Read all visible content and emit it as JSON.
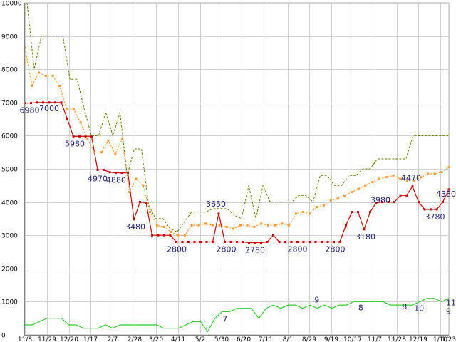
{
  "chart_data": {
    "type": "line",
    "grid": true,
    "ylim": [
      0,
      10000
    ],
    "y_ticks": [
      0,
      1000,
      2000,
      3000,
      4000,
      5000,
      6000,
      7000,
      8000,
      9000,
      10000
    ],
    "y_tick_labels": [
      "0",
      "1000",
      "2000",
      "3000",
      "4000",
      "5000",
      "6000",
      "7000",
      "8000",
      "9000",
      "10000"
    ],
    "x_tick_labels": [
      "11/8",
      "11/29",
      "12/20",
      "1/17",
      "2/7",
      "2/28",
      "3/20",
      "4/11",
      "5/2",
      "5/30",
      "6/20",
      "7/11",
      "8/1",
      "8/29",
      "9/19",
      "10/17",
      "11/7",
      "11/28",
      "12/19",
      "1/10",
      "1/23"
    ],
    "series_colors": {
      "price": "#cc0000",
      "average": "#ff9933",
      "high": "#667700",
      "count": "#33cc33"
    },
    "series": [
      {
        "id": "price",
        "values": [
          6980,
          6980,
          7000,
          7000,
          7000,
          7000,
          7000,
          6500,
          5980,
          5980,
          5980,
          5980,
          4970,
          4970,
          4900,
          4880,
          4880,
          4880,
          3480,
          4000,
          3980,
          3000,
          3000,
          3000,
          3000,
          2800,
          2800,
          2800,
          2800,
          2800,
          2800,
          2800,
          3650,
          2800,
          2800,
          2800,
          2800,
          2780,
          2780,
          2780,
          2800,
          3000,
          2800,
          2800,
          2800,
          2800,
          2800,
          2800,
          2800,
          2800,
          2800,
          2800,
          2800,
          3300,
          3700,
          3700,
          3180,
          3700,
          3980,
          4000,
          4000,
          4000,
          4200,
          4200,
          4470,
          4000,
          3780,
          3780,
          3780,
          4000,
          4380
        ]
      },
      {
        "id": "average",
        "values": [
          8650,
          7500,
          7900,
          7800,
          7800,
          7500,
          6800,
          6800,
          6400,
          5900,
          5500,
          5500,
          5850,
          5450,
          5900,
          4300,
          4700,
          4500,
          3700,
          3300,
          3250,
          3100,
          3000,
          3000,
          3300,
          3300,
          3350,
          3300,
          3300,
          3250,
          3200,
          3300,
          3300,
          3250,
          3350,
          3300,
          3300,
          3350,
          3300,
          3650,
          3700,
          3650,
          3850,
          3900,
          4050,
          4100,
          4200,
          4300,
          4400,
          4500,
          4600,
          4700,
          4750,
          4800,
          4700,
          4650,
          4650,
          4750,
          4850,
          4850,
          4900,
          5050
        ]
      },
      {
        "id": "high",
        "values": [
          10000,
          8000,
          9000,
          9000,
          9000,
          9000,
          7700,
          7700,
          6800,
          6000,
          6000,
          6700,
          6000,
          6700,
          4800,
          5600,
          5600,
          3900,
          3500,
          3500,
          3200,
          3100,
          3400,
          3700,
          3700,
          3700,
          3800,
          3800,
          3800,
          3600,
          3500,
          4500,
          3500,
          4500,
          4000,
          4000,
          4000,
          4000,
          4200,
          4200,
          4000,
          4800,
          4800,
          4500,
          4500,
          4800,
          4800,
          5000,
          5000,
          5300,
          5300,
          5300,
          5300,
          5300,
          6000,
          6000,
          6000,
          6000,
          6000,
          6000
        ]
      },
      {
        "id": "count",
        "values": [
          300,
          300,
          400,
          500,
          500,
          500,
          300,
          300,
          200,
          200,
          200,
          300,
          200,
          300,
          300,
          300,
          300,
          300,
          300,
          200,
          200,
          200,
          300,
          400,
          400,
          100,
          500,
          700,
          700,
          800,
          800,
          800,
          500,
          800,
          900,
          800,
          900,
          900,
          800,
          900,
          800,
          900,
          800,
          900,
          900,
          1000,
          1000,
          1000,
          1000,
          1000,
          900,
          900,
          900,
          900,
          1000,
          1100,
          1100,
          1000,
          1100
        ]
      }
    ],
    "data_labels": [
      {
        "series": "price",
        "text": "6980"
      },
      {
        "series": "price",
        "text": "7000"
      },
      {
        "series": "price",
        "text": "5980"
      },
      {
        "series": "price",
        "text": "4970"
      },
      {
        "series": "price",
        "text": "4880"
      },
      {
        "series": "price",
        "text": "3480"
      },
      {
        "series": "price",
        "text": "3650"
      },
      {
        "series": "price",
        "text": "2800"
      },
      {
        "series": "price",
        "text": "2800"
      },
      {
        "series": "price",
        "text": "2780"
      },
      {
        "series": "price",
        "text": "2800"
      },
      {
        "series": "price",
        "text": "2800"
      },
      {
        "series": "price",
        "text": "3180"
      },
      {
        "series": "price",
        "text": "3980"
      },
      {
        "series": "price",
        "text": "4470"
      },
      {
        "series": "price",
        "text": "3780"
      },
      {
        "series": "price",
        "text": "4380"
      },
      {
        "series": "count",
        "text": "7"
      },
      {
        "series": "count",
        "text": "9"
      },
      {
        "series": "count",
        "text": "8"
      },
      {
        "series": "count",
        "text": "8"
      },
      {
        "series": "count",
        "text": "10"
      },
      {
        "series": "count",
        "text": "9"
      },
      {
        "series": "count",
        "text": "11"
      }
    ]
  }
}
